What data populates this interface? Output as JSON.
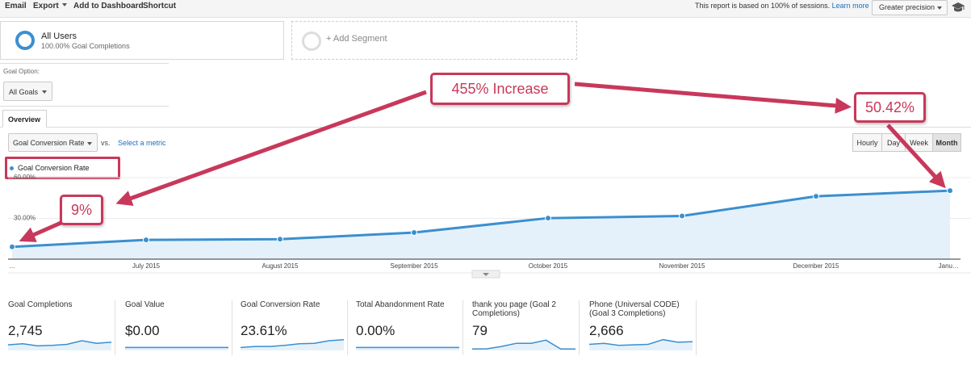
{
  "toolbar": {
    "email": "Email",
    "export": "Export",
    "add_to_dashboard": "Add to Dashboard",
    "shortcut": "Shortcut",
    "sampling_text": "This report is based on 100% of sessions.",
    "learn_more": "Learn more",
    "precision": "Greater precision"
  },
  "segments": {
    "active_name": "All Users",
    "active_sub": "100.00% Goal Completions",
    "add_label": "+ Add Segment"
  },
  "goal_option": {
    "label": "Goal Option:",
    "value": "All Goals"
  },
  "tabs": {
    "overview": "Overview"
  },
  "metric_picker": {
    "value": "Goal Conversion Rate",
    "vs": "vs.",
    "select_metric": "Select a metric"
  },
  "periods": [
    "Hourly",
    "Day",
    "Week",
    "Month"
  ],
  "active_period": "Month",
  "legend": {
    "label": "Goal Conversion Rate"
  },
  "colors": {
    "series": "#3b8fcf",
    "area": "#e5f1fa",
    "annotation": "#c8385a"
  },
  "chart_data": {
    "type": "area",
    "x": [
      "…",
      "July 2015",
      "August 2015",
      "September 2015",
      "October 2015",
      "November 2015",
      "December 2015",
      "Janu…"
    ],
    "series": [
      {
        "name": "Goal Conversion Rate",
        "values": [
          9.08,
          14.2,
          14.7,
          19.6,
          30.2,
          31.8,
          46.3,
          50.42
        ]
      }
    ],
    "y_ticks": [
      "60.00%",
      "30.00%"
    ],
    "ylim": [
      0,
      63
    ],
    "grid": true
  },
  "scorecards": [
    {
      "title": "Goal Completions",
      "value": "2,745",
      "spark": [
        0.45,
        0.55,
        0.35,
        0.4,
        0.5,
        0.85,
        0.6,
        0.7
      ]
    },
    {
      "title": "Goal Value",
      "value": "$0.00",
      "spark": [
        0.2,
        0.2,
        0.2,
        0.2,
        0.2,
        0.2,
        0.2,
        0.2
      ]
    },
    {
      "title": "Goal Conversion Rate",
      "value": "23.61%",
      "spark": [
        0.2,
        0.3,
        0.3,
        0.4,
        0.55,
        0.6,
        0.85,
        0.95
      ]
    },
    {
      "title": "Total Abandonment Rate",
      "value": "0.00%",
      "spark": [
        0.2,
        0.2,
        0.2,
        0.2,
        0.2,
        0.2,
        0.2,
        0.2
      ]
    },
    {
      "title": "thank you page (Goal 2 Completions)",
      "value": "79",
      "spark": [
        0.05,
        0.08,
        0.3,
        0.6,
        0.6,
        0.9,
        0.05,
        0.05
      ]
    },
    {
      "title": "Phone (Universal CODE) (Goal 3 Completions)",
      "value": "2,666",
      "spark": [
        0.5,
        0.6,
        0.4,
        0.45,
        0.5,
        0.95,
        0.7,
        0.75
      ]
    }
  ],
  "annotations": {
    "increase": "455% Increase",
    "start_value": "9%",
    "end_value": "50.42%"
  }
}
